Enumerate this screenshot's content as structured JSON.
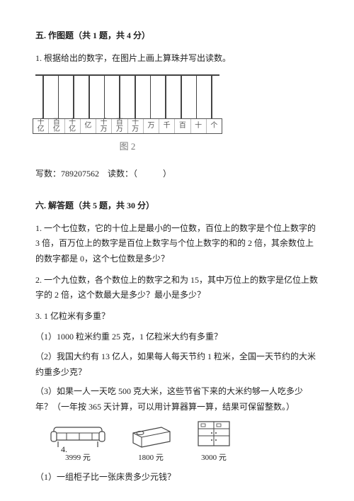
{
  "section5": {
    "title": "五. 作图题（共 1 题，共 4 分）",
    "q1": "1. 根据给出的数字，在图片上画上算珠并写出读数。",
    "abacus_labels": [
      "千亿",
      "百亿",
      "十亿",
      "亿",
      "千万",
      "百万",
      "十万",
      "万",
      "千",
      "百",
      "十",
      "个"
    ],
    "fig_label": "图 2",
    "write_label": "写数：",
    "write_value": "789207562",
    "read_label": "读数：（",
    "read_close": "）"
  },
  "section6": {
    "title": "六. 解答题（共 5 题，共 30 分）",
    "q1": "1. 一个七位数，它的十位上是最小的一位数，百位上的数字是个位上数字的 3 倍，百万位上的数字是百位上数字与个位上数字的和的 2 倍，其余数位上的数字都是 0，这个七位数是多少？",
    "q2": "2. 一个九位数，各个数位上的数字之和为 15，其中万位上的数字是亿位上数字的 2 倍，这个数最大是多少？最小是多少？",
    "q3_intro": "3. 1 亿粒米有多重？",
    "q3_1": "（1）1000 粒米约重 25 克，1 亿粒米大约有多重？",
    "q3_2": "（2）我国大约有 13 亿人，如果每人每天节约 1 粒米，全国一天节约的大米约重多少克？",
    "q3_3": "（3）如果一人一天吃 500 克大米，这些节省下来的大米约够一人吃多少年？（一年按 365 天计算，可以用计算器算一算，结果可保留整数。）",
    "q4_num": "4.",
    "items": {
      "sofa_price": "3999 元",
      "bed_price": "1800 元",
      "cabinet_price": "3000 元"
    },
    "q4_1": "（1）一组柜子比一张床贵多少元钱？"
  },
  "style": {
    "text_color": "#222",
    "rod_color": "#444",
    "cell_border": "#bbb"
  }
}
